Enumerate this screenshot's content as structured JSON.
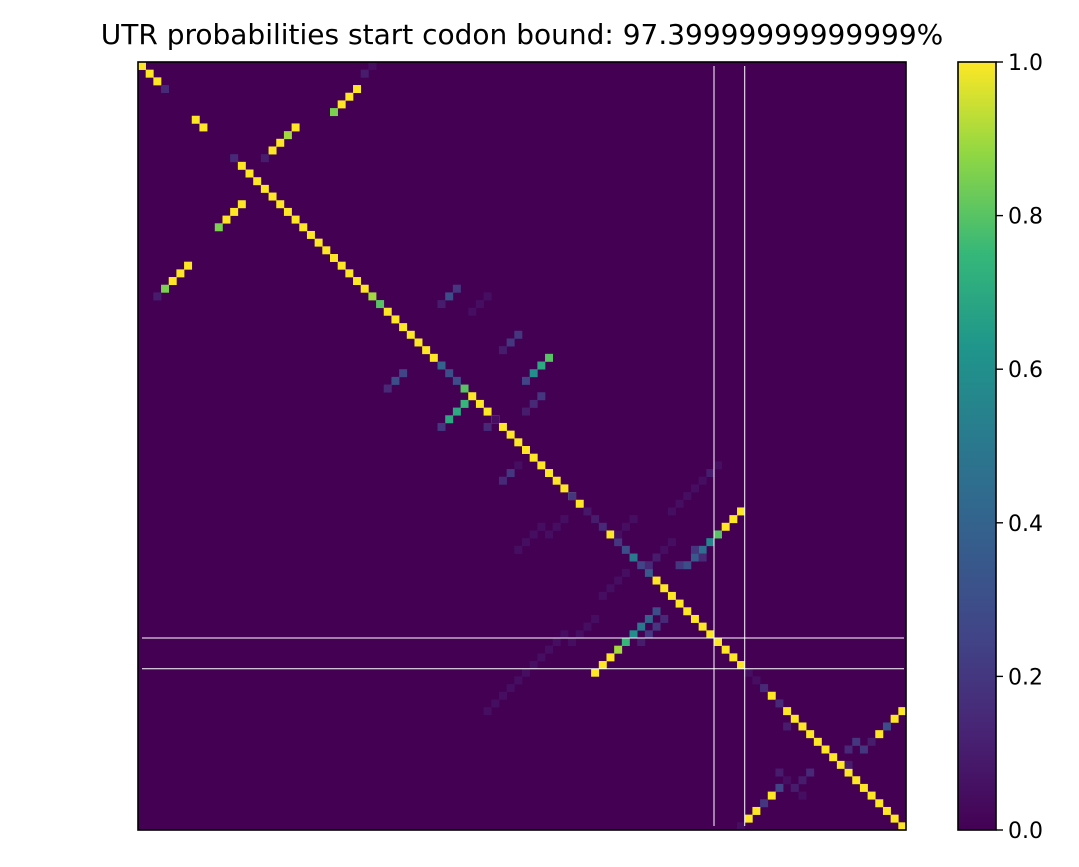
{
  "chart_data": {
    "type": "heatmap",
    "title": "UTR probabilities start codon bound: 97.39999999999999%",
    "matrix_size": 100,
    "colormap": "viridis",
    "vmin": 0.0,
    "vmax": 1.0,
    "colorbar": {
      "ticks": [
        0.0,
        0.2,
        0.4,
        0.6,
        0.8,
        1.0
      ],
      "tick_labels": [
        "0.0",
        "0.2",
        "0.4",
        "0.6",
        "0.8",
        "1.0"
      ]
    },
    "axes_ticks_visible": false,
    "grid": false,
    "marker_lines": {
      "color": "#ffffff",
      "indices": [
        74.5,
        78.5
      ]
    },
    "cells": [
      [
        0,
        0,
        1.0
      ],
      [
        1,
        1,
        1.0
      ],
      [
        2,
        2,
        1.0
      ],
      [
        3,
        3,
        0.15
      ],
      [
        7,
        7,
        1.0
      ],
      [
        8,
        8,
        1.0
      ],
      [
        12,
        12,
        0.15
      ],
      [
        13,
        13,
        1.0
      ],
      [
        14,
        14,
        1.0
      ],
      [
        15,
        15,
        1.0
      ],
      [
        16,
        16,
        1.0
      ],
      [
        17,
        17,
        1.0
      ],
      [
        18,
        18,
        1.0
      ],
      [
        19,
        19,
        1.0
      ],
      [
        20,
        20,
        1.0
      ],
      [
        21,
        21,
        1.0
      ],
      [
        22,
        22,
        1.0
      ],
      [
        23,
        23,
        1.0
      ],
      [
        24,
        24,
        1.0
      ],
      [
        25,
        25,
        1.0
      ],
      [
        26,
        26,
        1.0
      ],
      [
        27,
        27,
        1.0
      ],
      [
        28,
        28,
        1.0
      ],
      [
        29,
        29,
        1.0
      ],
      [
        30,
        30,
        0.9
      ],
      [
        31,
        31,
        0.8
      ],
      [
        32,
        32,
        1.0
      ],
      [
        33,
        33,
        1.0
      ],
      [
        34,
        34,
        1.0
      ],
      [
        35,
        35,
        1.0
      ],
      [
        36,
        36,
        1.0
      ],
      [
        37,
        37,
        1.0
      ],
      [
        38,
        38,
        1.0
      ],
      [
        39,
        39,
        0.4
      ],
      [
        40,
        40,
        0.3
      ],
      [
        41,
        41,
        0.3
      ],
      [
        42,
        42,
        0.8
      ],
      [
        43,
        43,
        1.0
      ],
      [
        44,
        44,
        1.0
      ],
      [
        45,
        45,
        1.0
      ],
      [
        46,
        46,
        1.0
      ],
      [
        47,
        47,
        1.0
      ],
      [
        48,
        48,
        1.0
      ],
      [
        49,
        49,
        1.0
      ],
      [
        50,
        50,
        1.0
      ],
      [
        51,
        51,
        1.0
      ],
      [
        52,
        52,
        1.0
      ],
      [
        53,
        53,
        1.0
      ],
      [
        54,
        54,
        1.0
      ],
      [
        55,
        55,
        1.0
      ],
      [
        56,
        56,
        1.0
      ],
      [
        57,
        57,
        1.0
      ],
      [
        58,
        58,
        0.08
      ],
      [
        59,
        59,
        0.1
      ],
      [
        60,
        60,
        0.15
      ],
      [
        61,
        61,
        1.0
      ],
      [
        62,
        62,
        0.2
      ],
      [
        63,
        63,
        0.3
      ],
      [
        64,
        64,
        0.5
      ],
      [
        65,
        65,
        0.25
      ],
      [
        66,
        66,
        0.35
      ],
      [
        67,
        67,
        1.0
      ],
      [
        68,
        68,
        1.0
      ],
      [
        69,
        69,
        1.0
      ],
      [
        70,
        70,
        1.0
      ],
      [
        71,
        71,
        1.0
      ],
      [
        72,
        72,
        1.0
      ],
      [
        73,
        73,
        1.0
      ],
      [
        74,
        74,
        1.0
      ],
      [
        75,
        75,
        1.0
      ],
      [
        76,
        76,
        1.0
      ],
      [
        77,
        77,
        1.0
      ],
      [
        78,
        78,
        1.0
      ],
      [
        79,
        79,
        0.05
      ],
      [
        80,
        80,
        0.05
      ],
      [
        81,
        81,
        0.15
      ],
      [
        82,
        82,
        1.0
      ],
      [
        83,
        83,
        0.15
      ],
      [
        84,
        84,
        1.0
      ],
      [
        85,
        85,
        1.0
      ],
      [
        86,
        86,
        1.0
      ],
      [
        87,
        87,
        1.0
      ],
      [
        88,
        88,
        1.0
      ],
      [
        89,
        89,
        1.0
      ],
      [
        90,
        90,
        1.0
      ],
      [
        91,
        91,
        1.0
      ],
      [
        92,
        92,
        1.0
      ],
      [
        93,
        93,
        1.0
      ],
      [
        94,
        94,
        1.0
      ],
      [
        95,
        95,
        1.0
      ],
      [
        96,
        96,
        1.0
      ],
      [
        97,
        97,
        1.0
      ],
      [
        98,
        98,
        1.0
      ],
      [
        99,
        99,
        1.0
      ],
      [
        1,
        29,
        0.1
      ],
      [
        0,
        30,
        0.05
      ],
      [
        8,
        20,
        1.0
      ],
      [
        9,
        19,
        0.9
      ],
      [
        10,
        18,
        1.0
      ],
      [
        11,
        17,
        1.0
      ],
      [
        12,
        16,
        0.1
      ],
      [
        3,
        28,
        1.0
      ],
      [
        4,
        27,
        1.0
      ],
      [
        5,
        26,
        1.0
      ],
      [
        6,
        25,
        0.85
      ],
      [
        18,
        13,
        1.0
      ],
      [
        19,
        12,
        1.0
      ],
      [
        20,
        11,
        1.0
      ],
      [
        21,
        10,
        0.85
      ],
      [
        26,
        6,
        1.0
      ],
      [
        27,
        5,
        1.0
      ],
      [
        28,
        4,
        1.0
      ],
      [
        29,
        3,
        0.85
      ],
      [
        30,
        2,
        0.1
      ],
      [
        29,
        41,
        0.2
      ],
      [
        30,
        40,
        0.3
      ],
      [
        31,
        39,
        0.1
      ],
      [
        30,
        45,
        0.05
      ],
      [
        31,
        44,
        0.05
      ],
      [
        32,
        43,
        0.05
      ],
      [
        42,
        32,
        0.15
      ],
      [
        41,
        33,
        0.3
      ],
      [
        40,
        34,
        0.25
      ],
      [
        35,
        49,
        0.2
      ],
      [
        36,
        48,
        0.2
      ],
      [
        37,
        47,
        0.1
      ],
      [
        38,
        53,
        0.8
      ],
      [
        39,
        52,
        0.7
      ],
      [
        40,
        51,
        0.6
      ],
      [
        41,
        50,
        0.25
      ],
      [
        44,
        42,
        0.75
      ],
      [
        45,
        41,
        0.7
      ],
      [
        46,
        40,
        0.7
      ],
      [
        47,
        39,
        0.2
      ],
      [
        43,
        52,
        0.2
      ],
      [
        44,
        51,
        0.15
      ],
      [
        45,
        50,
        0.1
      ],
      [
        52,
        49,
        0.05
      ],
      [
        53,
        48,
        0.2
      ],
      [
        54,
        47,
        0.15
      ],
      [
        46,
        46,
        0.05
      ],
      [
        47,
        45,
        0.15
      ],
      [
        56,
        56,
        0.2
      ],
      [
        65,
        66,
        0.15
      ],
      [
        64,
        67,
        0.1
      ],
      [
        63,
        68,
        0.05
      ],
      [
        62,
        69,
        0.05
      ],
      [
        59,
        64,
        0.05
      ],
      [
        60,
        63,
        0.05
      ],
      [
        61,
        62,
        0.05
      ],
      [
        66,
        63,
        0.05
      ],
      [
        67,
        62,
        0.05
      ],
      [
        68,
        61,
        0.05
      ],
      [
        69,
        60,
        0.05
      ],
      [
        72,
        59,
        0.05
      ],
      [
        73,
        58,
        0.05
      ],
      [
        74,
        57,
        0.05
      ],
      [
        75,
        56,
        0.05
      ],
      [
        74,
        55,
        0.05
      ],
      [
        75,
        54,
        0.05
      ],
      [
        76,
        53,
        0.05
      ],
      [
        77,
        52,
        0.05
      ],
      [
        78,
        51,
        0.05
      ],
      [
        79,
        50,
        0.05
      ],
      [
        80,
        49,
        0.05
      ],
      [
        81,
        48,
        0.05
      ],
      [
        82,
        47,
        0.05
      ],
      [
        83,
        46,
        0.05
      ],
      [
        84,
        45,
        0.05
      ],
      [
        58,
        69,
        0.05
      ],
      [
        57,
        70,
        0.05
      ],
      [
        56,
        71,
        0.05
      ],
      [
        55,
        72,
        0.05
      ],
      [
        54,
        73,
        0.05
      ],
      [
        53,
        74,
        0.1
      ],
      [
        52,
        75,
        0.05
      ],
      [
        60,
        52,
        0.05
      ],
      [
        61,
        51,
        0.05
      ],
      [
        62,
        50,
        0.05
      ],
      [
        63,
        49,
        0.05
      ],
      [
        59,
        55,
        0.05
      ],
      [
        60,
        54,
        0.05
      ],
      [
        61,
        53,
        0.05
      ],
      [
        58,
        78,
        1.0
      ],
      [
        59,
        77,
        1.0
      ],
      [
        60,
        76,
        1.0
      ],
      [
        61,
        75,
        0.8
      ],
      [
        62,
        74,
        0.55
      ],
      [
        63,
        73,
        0.45
      ],
      [
        64,
        72,
        0.35
      ],
      [
        65,
        71,
        0.3
      ],
      [
        64,
        73,
        0.15
      ],
      [
        63,
        72,
        0.2
      ],
      [
        65,
        70,
        0.2
      ],
      [
        71,
        67,
        0.3
      ],
      [
        72,
        66,
        0.4
      ],
      [
        73,
        65,
        0.5
      ],
      [
        74,
        64,
        0.6
      ],
      [
        75,
        63,
        0.75
      ],
      [
        76,
        62,
        0.9
      ],
      [
        77,
        61,
        1.0
      ],
      [
        78,
        60,
        1.0
      ],
      [
        79,
        59,
        1.0
      ],
      [
        72,
        68,
        0.15
      ],
      [
        73,
        67,
        0.2
      ],
      [
        74,
        66,
        0.2
      ],
      [
        75,
        65,
        0.1
      ],
      [
        84,
        99,
        1.0
      ],
      [
        85,
        98,
        1.0
      ],
      [
        86,
        97,
        0.3
      ],
      [
        87,
        96,
        1.0
      ],
      [
        88,
        95,
        0.1
      ],
      [
        89,
        94,
        0.2
      ],
      [
        88,
        93,
        0.2
      ],
      [
        89,
        92,
        0.15
      ],
      [
        91,
        92,
        0.1
      ],
      [
        93,
        84,
        0.05
      ],
      [
        94,
        83,
        0.25
      ],
      [
        95,
        82,
        1.0
      ],
      [
        96,
        81,
        0.2
      ],
      [
        97,
        80,
        1.0
      ],
      [
        98,
        79,
        1.0
      ],
      [
        99,
        78,
        0.05
      ],
      [
        92,
        87,
        0.15
      ],
      [
        93,
        86,
        0.1
      ],
      [
        86,
        84,
        0.1
      ],
      [
        92,
        83,
        0.1
      ],
      [
        94,
        85,
        0.1
      ],
      [
        95,
        86,
        0.05
      ]
    ]
  }
}
